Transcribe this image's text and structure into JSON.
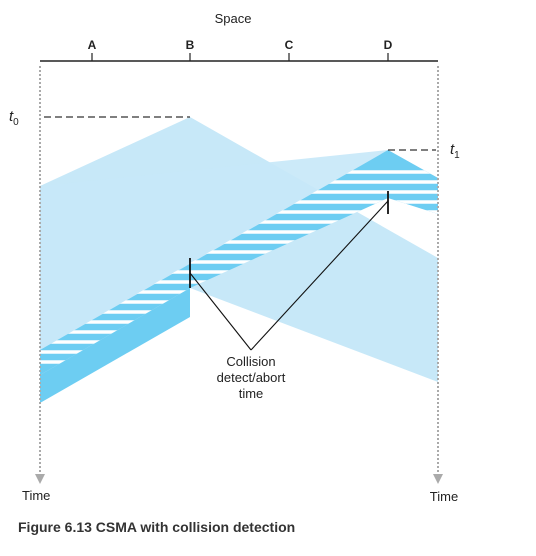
{
  "axis": {
    "space_label": "Space",
    "time_label_left": "Time",
    "time_label_right": "Time"
  },
  "nodes": [
    {
      "id": "A",
      "label": "A"
    },
    {
      "id": "B",
      "label": "B"
    },
    {
      "id": "C",
      "label": "C"
    },
    {
      "id": "D",
      "label": "D"
    }
  ],
  "time_markers": {
    "t0": {
      "symbol": "t",
      "subscript": "0"
    },
    "t1": {
      "symbol": "t",
      "subscript": "1"
    }
  },
  "annotation": {
    "lines": [
      "Collision",
      "detect/abort",
      "time"
    ]
  },
  "figure": {
    "caption": "Figure 6.13 CSMA with collision detection"
  },
  "colors": {
    "light_blue": "#c7e8f8",
    "mid_blue": "#6dcdf2",
    "stripe": "#ffffff",
    "axis_line": "#222222",
    "time_axis": "#aaaaaa",
    "dashed": "#333333"
  }
}
